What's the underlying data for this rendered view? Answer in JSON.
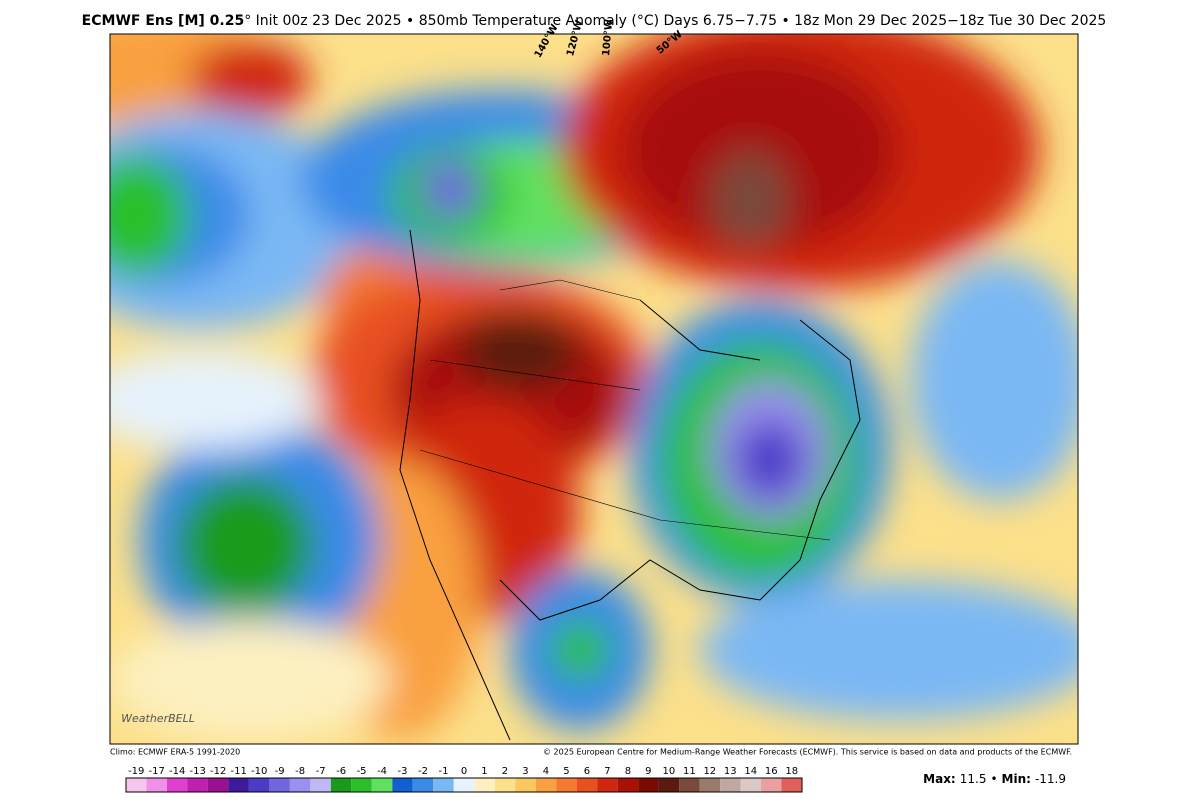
{
  "header": {
    "title_bold": "ECMWF Ens [M] 0.25",
    "title_rest": "° Init 00z 23 Dec 2025 • 850mb Temperature Anomaly (°C)   Days 6.75−7.75 • 18z Mon 29 Dec 2025−18z Tue 30 Dec 2025"
  },
  "map": {
    "longitude_labels": [
      "140°W",
      "120°W",
      "100°W",
      "50°W"
    ],
    "watermark": "WeatherBELL"
  },
  "footer": {
    "climo": "Climo: ECMWF ERA-5 1991-2020",
    "copyright": "© 2025 European Centre for Medium-Range Weather Forecasts (ECMWF). This service is based on data and products of the ECMWF."
  },
  "colorbar": {
    "ticks": [
      -19,
      -17,
      -14,
      -13,
      -12,
      -11,
      -10,
      -9,
      -8,
      -7,
      -6,
      -5,
      -4,
      -3,
      -2,
      -1,
      0,
      1,
      2,
      3,
      4,
      5,
      6,
      7,
      8,
      9,
      10,
      11,
      12,
      13,
      14,
      16,
      18
    ],
    "colors": [
      "#f7c6f0",
      "#f090e6",
      "#e040d0",
      "#c020b0",
      "#9a1090",
      "#3c1a9a",
      "#4b3cc8",
      "#6f66e0",
      "#9a90ee",
      "#c0b8f4",
      "#1a9a1a",
      "#2bc02b",
      "#60e060",
      "#1060d0",
      "#3a8ae8",
      "#7ab8f4",
      "#e6f2fc",
      "#fdf0c0",
      "#fce08a",
      "#fbc860",
      "#f9a040",
      "#f47a30",
      "#e85020",
      "#d02810",
      "#a81008",
      "#7a0a04",
      "#5a1a10",
      "#7a4a3a",
      "#9a7a6a",
      "#c0a8a0",
      "#dcc8c4",
      "#e8a0a0",
      "#e06060"
    ]
  },
  "stats": {
    "max_label": "Max:",
    "max": 11.5,
    "separator": "•",
    "min_label": "Min:",
    "min": -11.9
  }
}
